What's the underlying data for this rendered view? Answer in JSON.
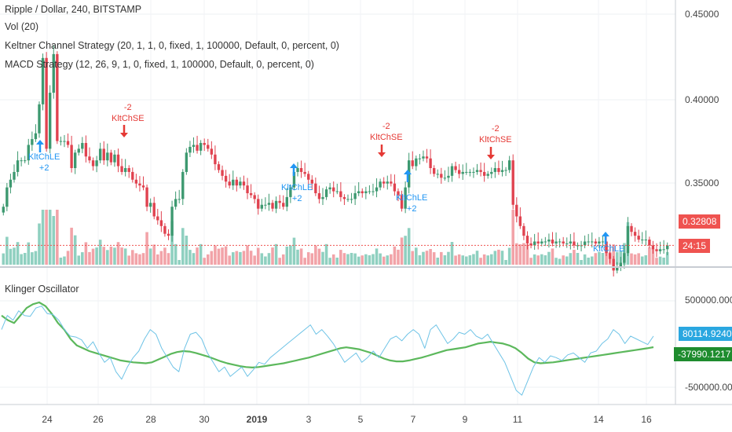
{
  "legend": {
    "title": "Ripple / Dollar, 240, BITSTAMP",
    "vol": "Vol (20)",
    "keltner": "Keltner Channel Strategy (20, 1, 1, 0, fixed, 1, 100000, Default, 0, percent, 0)",
    "macd": "MACD Strategy (12, 26, 9, 1, 0, fixed, 1, 100000, Default, 0, percent, 0)",
    "klinger": "Klinger Oscillator"
  },
  "price_axis": {
    "ticks": [
      "0.45000",
      "0.40000",
      "0.35000"
    ],
    "last_price": "0.32808",
    "countdown": "24:15"
  },
  "osc_axis": {
    "ticks": [
      "500000.0000",
      "-500000.0000"
    ],
    "klinger_value": "80114.9240",
    "signal_value": "-37990.1217"
  },
  "time_axis": {
    "labels": [
      "24",
      "26",
      "28",
      "30",
      "2019",
      "3",
      "5",
      "7",
      "9",
      "11",
      "14",
      "16"
    ]
  },
  "signals": [
    {
      "type": "buy",
      "text": [
        "KltChLE",
        "+2"
      ]
    },
    {
      "type": "sell",
      "text": [
        "-2",
        "KltChSE"
      ]
    },
    {
      "type": "buy",
      "text": [
        "KltChLE",
        "+2"
      ]
    },
    {
      "type": "sell",
      "text": [
        "-2",
        "KltChSE"
      ]
    },
    {
      "type": "buy",
      "text": [
        "KltChLE",
        "+2"
      ]
    },
    {
      "type": "sell",
      "text": [
        "-2",
        "KltChSE"
      ]
    },
    {
      "type": "buy",
      "text": [
        "KltChLE"
      ]
    }
  ],
  "colors": {
    "up": "#3d9970",
    "down": "#e0424f",
    "vol_up": "#8fd0c0",
    "vol_down": "#f2a3a8",
    "klinger_line": "#6ec3e6",
    "signal_line": "#5cb85c",
    "buy": "#2196f3",
    "sell": "#e53935",
    "last_price_tag": "#ef5350",
    "klinger_tag": "#2aa7e0",
    "signal_tag": "#1e8c2e"
  },
  "chart_data": [
    {
      "type": "candlestick",
      "title": "Ripple / Dollar, 240, BITSTAMP",
      "ylim": [
        0.318,
        0.455
      ],
      "close": [
        0.348,
        0.358,
        0.362,
        0.366,
        0.372,
        0.372,
        0.372,
        0.38,
        0.383,
        0.386,
        0.401,
        0.425,
        0.378,
        0.407,
        0.427,
        0.382,
        0.382,
        0.382,
        0.38,
        0.368,
        0.376,
        0.378,
        0.381,
        0.374,
        0.372,
        0.369,
        0.372,
        0.378,
        0.372,
        0.376,
        0.371,
        0.375,
        0.369,
        0.366,
        0.368,
        0.366,
        0.362,
        0.36,
        0.359,
        0.358,
        0.348,
        0.35,
        0.343,
        0.341,
        0.338,
        0.334,
        0.333,
        0.348,
        0.352,
        0.352,
        0.366,
        0.376,
        0.379,
        0.38,
        0.377,
        0.381,
        0.38,
        0.378,
        0.375,
        0.37,
        0.367,
        0.364,
        0.361,
        0.359,
        0.362,
        0.359,
        0.361,
        0.359,
        0.355,
        0.354,
        0.352,
        0.347,
        0.349,
        0.349,
        0.35,
        0.347,
        0.351,
        0.35,
        0.348,
        0.353,
        0.358,
        0.366,
        0.368,
        0.366,
        0.365,
        0.362,
        0.36,
        0.355,
        0.352,
        0.353,
        0.357,
        0.358,
        0.356,
        0.356,
        0.353,
        0.352,
        0.352,
        0.352,
        0.355,
        0.356,
        0.355,
        0.356,
        0.356,
        0.356,
        0.358,
        0.361,
        0.36,
        0.361,
        0.36,
        0.356,
        0.354,
        0.347,
        0.358,
        0.372,
        0.369,
        0.373,
        0.373,
        0.374,
        0.373,
        0.368,
        0.365,
        0.365,
        0.363,
        0.363,
        0.364,
        0.369,
        0.367,
        0.365,
        0.366,
        0.366,
        0.366,
        0.366,
        0.367,
        0.366,
        0.364,
        0.365,
        0.366,
        0.368,
        0.366,
        0.367,
        0.367,
        0.372,
        0.349,
        0.343,
        0.338,
        0.333,
        0.329,
        0.328,
        0.33,
        0.329,
        0.33,
        0.33,
        0.331,
        0.329,
        0.33,
        0.33,
        0.329,
        0.329,
        0.33,
        0.328,
        0.328,
        0.328,
        0.33,
        0.33,
        0.33,
        0.329,
        0.33,
        0.33,
        0.324,
        0.321,
        0.315,
        0.317,
        0.319,
        0.324,
        0.338,
        0.335,
        0.333,
        0.331,
        0.331,
        0.331,
        0.328,
        0.326,
        0.325,
        0.326,
        0.326,
        0.328
      ],
      "series": [
        {
          "name": "Vol (20)"
        },
        {
          "name": "Keltner Channel Strategy"
        },
        {
          "name": "MACD Strategy"
        }
      ]
    },
    {
      "type": "line",
      "title": "Klinger Oscillator",
      "ylim": [
        -650000,
        800000
      ],
      "series": [
        {
          "values": [
            150000,
            300000,
            250000,
            350000,
            300000,
            290000,
            380000,
            400000,
            320000,
            310000,
            250000,
            150000,
            80000,
            70000,
            40000,
            -50000,
            20000,
            -100000,
            -200000,
            -150000,
            -300000,
            -380000,
            -250000,
            -150000,
            -80000,
            50000,
            150000,
            100000,
            -50000,
            -150000,
            -250000,
            -300000,
            -50000,
            100000,
            120000,
            50000,
            -100000,
            -200000,
            -300000,
            -250000,
            -350000,
            -300000,
            -250000,
            -350000,
            -280000,
            -200000,
            -220000,
            -150000,
            -100000,
            -50000,
            0,
            50000,
            100000,
            150000,
            200000,
            100000,
            150000,
            80000,
            0,
            -100000,
            -200000,
            -150000,
            -100000,
            -200000,
            -150000,
            -80000,
            -150000,
            -50000,
            50000,
            80000,
            30000,
            100000,
            150000,
            100000,
            -50000,
            150000,
            200000,
            100000,
            0,
            50000,
            120000,
            100000,
            150000,
            80000,
            50000,
            100000,
            0,
            -100000,
            -200000,
            -350000,
            -500000,
            -550000,
            -400000,
            -250000,
            -150000,
            -200000,
            -130000,
            -150000,
            -180000,
            -120000,
            -100000,
            -150000,
            -200000,
            -100000,
            -80000,
            0,
            50000,
            150000,
            100000,
            0,
            80000,
            50000,
            20000,
            -10000,
            80114.924
          ]
        },
        {
          "values": [
            300000,
            250000,
            220000,
            300000,
            380000,
            420000,
            440000,
            400000,
            320000,
            220000,
            150000,
            50000,
            -20000,
            -50000,
            -80000,
            -100000,
            -120000,
            -140000,
            -160000,
            -180000,
            -190000,
            -200000,
            -205000,
            -210000,
            -200000,
            -170000,
            -140000,
            -110000,
            -90000,
            -80000,
            -85000,
            -100000,
            -120000,
            -140000,
            -165000,
            -190000,
            -210000,
            -225000,
            -240000,
            -250000,
            -255000,
            -250000,
            -240000,
            -230000,
            -220000,
            -210000,
            -195000,
            -180000,
            -165000,
            -150000,
            -130000,
            -110000,
            -90000,
            -70000,
            -50000,
            -40000,
            -50000,
            -60000,
            -80000,
            -100000,
            -130000,
            -160000,
            -180000,
            -190000,
            -190000,
            -180000,
            -165000,
            -150000,
            -130000,
            -110000,
            -90000,
            -70000,
            -60000,
            -50000,
            -40000,
            -20000,
            0,
            10000,
            20000,
            10000,
            0,
            -20000,
            -50000,
            -100000,
            -160000,
            -200000,
            -210000,
            -205000,
            -200000,
            -190000,
            -180000,
            -170000,
            -160000,
            -150000,
            -140000,
            -130000,
            -120000,
            -110000,
            -100000,
            -90000,
            -80000,
            -70000,
            -60000,
            -50000,
            -37990.1217
          ]
        }
      ]
    }
  ]
}
